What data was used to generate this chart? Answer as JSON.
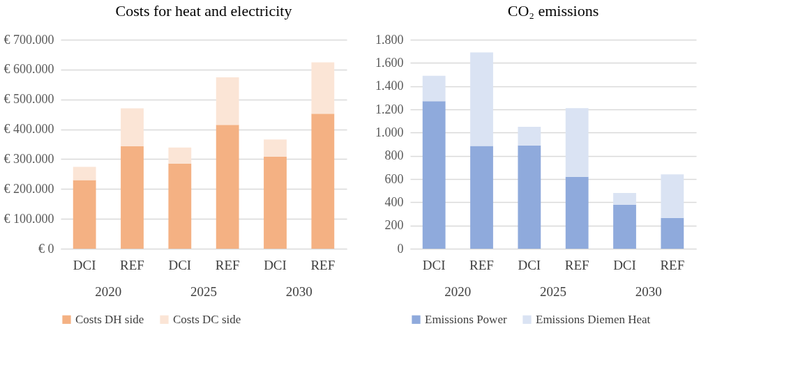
{
  "chart_data": [
    {
      "type": "bar",
      "title": "Costs for heat and electricity",
      "stacked": true,
      "categories": [
        "DCI",
        "REF",
        "DCI",
        "REF",
        "DCI",
        "REF"
      ],
      "annotations": [
        "2020",
        "2025",
        "2030"
      ],
      "series": [
        {
          "name": "Costs DH side",
          "color": "#f4b183",
          "values": [
            230000,
            343000,
            285000,
            415000,
            308000,
            452000
          ]
        },
        {
          "name": "Costs DC side",
          "color": "#fbe5d6",
          "values": [
            44000,
            127000,
            54000,
            159000,
            58000,
            172000
          ]
        }
      ],
      "ylim": [
        0,
        700000
      ],
      "yticks": [
        {
          "value": 0,
          "label": "€ 0"
        },
        {
          "value": 100000,
          "label": "€ 100.000"
        },
        {
          "value": 200000,
          "label": "€ 200.000"
        },
        {
          "value": 300000,
          "label": "€ 300.000"
        },
        {
          "value": 400000,
          "label": "€ 400.000"
        },
        {
          "value": 500000,
          "label": "€ 500.000"
        },
        {
          "value": 600000,
          "label": "€ 600.000"
        },
        {
          "value": 700000,
          "label": "€ 700.000"
        }
      ],
      "grid": "y",
      "legend": "bottom"
    },
    {
      "type": "bar",
      "title": "CO₂ emissions",
      "stacked": true,
      "categories": [
        "DCI",
        "REF",
        "DCI",
        "REF",
        "DCI",
        "REF"
      ],
      "annotations": [
        "2020",
        "2025",
        "2030"
      ],
      "series": [
        {
          "name": "Emissions Power",
          "color": "#8faadc",
          "values": [
            1270,
            885,
            890,
            620,
            380,
            265
          ]
        },
        {
          "name": "Emissions Diemen Heat",
          "color": "#dae3f3",
          "values": [
            220,
            805,
            160,
            590,
            100,
            375
          ]
        }
      ],
      "ylim": [
        0,
        1800
      ],
      "yticks": [
        0,
        {
          "value": 200,
          "label": "200"
        },
        {
          "value": 400,
          "label": "400"
        },
        {
          "value": 600,
          "label": "600"
        },
        {
          "value": 800,
          "label": "800"
        },
        {
          "value": 1000,
          "label": "1.000"
        },
        {
          "value": 1200,
          "label": "1.200"
        },
        {
          "value": 1400,
          "label": "1.400"
        },
        {
          "value": 1600,
          "label": "1.600"
        },
        {
          "value": 1800,
          "label": "1.800"
        }
      ],
      "grid": "y",
      "legend": "bottom"
    }
  ]
}
